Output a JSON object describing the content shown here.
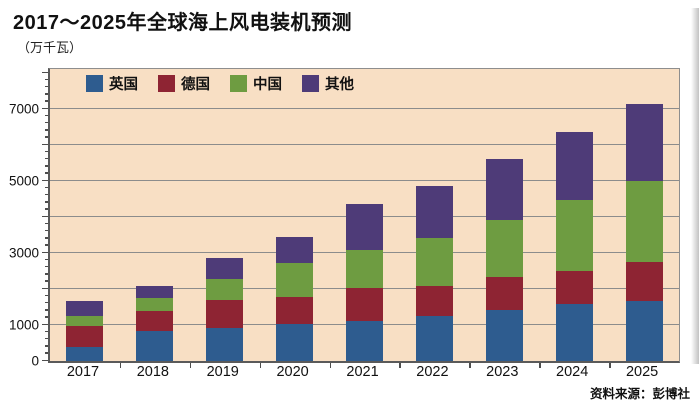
{
  "title": "2017～2025年全球海上风电装机预测",
  "unit_label": "（万千瓦）",
  "source": "资料来源：彭博社",
  "colors": {
    "uk": "#2E5C8F",
    "germany": "#8E2433",
    "china": "#6E9C41",
    "others": "#4E3B78",
    "panel_bg": "#F8DFC4",
    "gridline": "#8C8C8C"
  },
  "chart_data": {
    "type": "bar",
    "stacked": true,
    "title": "2017～2025年全球海上风电装机预测",
    "ylabel": "（万千瓦）",
    "grid": true,
    "legend_position": "top-inside",
    "categories": [
      "2017",
      "2018",
      "2019",
      "2020",
      "2021",
      "2022",
      "2023",
      "2024",
      "2025"
    ],
    "series": [
      {
        "name": "英国",
        "key": "uk",
        "values": [
          400,
          830,
          910,
          1020,
          1110,
          1250,
          1410,
          1590,
          1670
        ]
      },
      {
        "name": "德国",
        "key": "germany",
        "values": [
          570,
          560,
          780,
          760,
          910,
          840,
          930,
          910,
          1090
        ]
      },
      {
        "name": "中国",
        "key": "china",
        "values": [
          280,
          370,
          580,
          950,
          1060,
          1340,
          1570,
          1960,
          2230
        ]
      },
      {
        "name": "其他",
        "key": "others",
        "values": [
          420,
          330,
          590,
          720,
          1280,
          1440,
          1700,
          1910,
          2160
        ]
      }
    ],
    "totals": [
      1670,
      2090,
      2860,
      3450,
      4360,
      4870,
      5610,
      6370,
      7150
    ],
    "y_axis": {
      "labeled_ticks": [
        0,
        1000,
        3000,
        5000,
        7000
      ],
      "gridline_step": 1000,
      "gridline_max": 7000,
      "minor_tick_step": 200,
      "axis_max": 8100
    }
  }
}
